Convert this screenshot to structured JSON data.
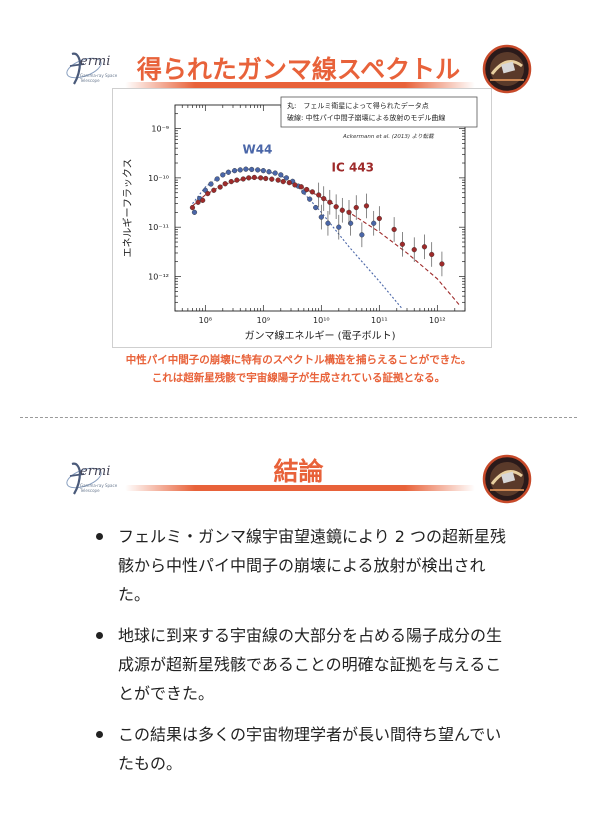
{
  "slide1": {
    "title": "得られたガンマ線スペクトル",
    "logo": {
      "word": "ermi",
      "sub": "Gamma-ray Space Telescope"
    },
    "legend": {
      "line1": "丸:　フェルミ衛星によって得られたデータ点",
      "line2": "破線: 中性パイ中間子崩壊による放射のモデル曲線"
    },
    "source_note": "Ackermann et al. (2013) より転載",
    "caption_line1": "中性パイ中間子の崩壊に特有のスペクトル構造を捕らえることができた。",
    "caption_line2": "これは超新星残骸で宇宙線陽子が生成されている証拠となる。"
  },
  "slide2": {
    "title": "結論",
    "logo": {
      "word": "ermi",
      "sub": "Gamma-ray Space Telescope"
    },
    "bullets": [
      "フェルミ・ガンマ線宇宙望遠鏡により 2 つの超新星残骸から中性パイ中間子の崩壊による放射が検出された。",
      "地球に到来する宇宙線の大部分を占める陽子成分の生成源が超新星残骸であることの明確な証拠を与えることができた。",
      "この結果は多くの宇宙物理学者が長い間待ち望んでいたもの。"
    ]
  },
  "colors": {
    "accent": "#e8623a",
    "w44": "#4a66a8",
    "ic443": "#9e2a2a"
  },
  "chart_data": {
    "type": "scatter",
    "xlabel": "ガンマ線エネルギー (電子ボルト)",
    "ylabel": "エネルギーフラックス",
    "xscale": "log",
    "yscale": "log",
    "xlim": [
      30000000.0,
      3000000000000.0
    ],
    "ylim": [
      2e-13,
      3e-09
    ],
    "x_ticks": [
      "10⁸",
      "10⁹",
      "10¹⁰",
      "10¹¹",
      "10¹²"
    ],
    "y_ticks": [
      "10⁻⁹",
      "10⁻¹⁰",
      "10⁻¹¹",
      "10⁻¹²"
    ],
    "series": [
      {
        "name": "W44",
        "points": [
          [
            65000000.0,
            2e-11
          ],
          [
            80000000.0,
            3.8e-11
          ],
          [
            100000000.0,
            5.6e-11
          ],
          [
            125000000.0,
            7.5e-11
          ],
          [
            160000000.0,
            9.5e-11
          ],
          [
            200000000.0,
            1.15e-10
          ],
          [
            250000000.0,
            1.3e-10
          ],
          [
            320000000.0,
            1.4e-10
          ],
          [
            400000000.0,
            1.45e-10
          ],
          [
            500000000.0,
            1.5e-10
          ],
          [
            630000000.0,
            1.48e-10
          ],
          [
            800000000.0,
            1.45e-10
          ],
          [
            1000000000.0,
            1.4e-10
          ],
          [
            1250000000.0,
            1.33e-10
          ],
          [
            1600000000.0,
            1.25e-10
          ],
          [
            2000000000.0,
            1.15e-10
          ],
          [
            2500000000.0,
            1e-10
          ],
          [
            3200000000.0,
            8.5e-11
          ],
          [
            4000000000.0,
            6.8e-11
          ],
          [
            5000000000.0,
            5.2e-11
          ],
          [
            6300000000.0,
            3.7e-11
          ],
          [
            8000000000.0,
            2.5e-11
          ],
          [
            10000000000.0,
            1.6e-11
          ],
          [
            13000000000.0,
            1.2e-11
          ],
          [
            20000000000.0,
            1e-11
          ],
          [
            32000000000.0,
            1.2e-11
          ],
          [
            50000000000.0,
            7e-12
          ],
          [
            80000000000.0,
            1.2e-11
          ]
        ]
      },
      {
        "name": "IC 443",
        "points": [
          [
            60000000.0,
            2.5e-11
          ],
          [
            75000000.0,
            3.2e-11
          ],
          [
            90000000.0,
            3.5e-11
          ],
          [
            110000000.0,
            4.8e-11
          ],
          [
            140000000.0,
            5.6e-11
          ],
          [
            180000000.0,
            6.5e-11
          ],
          [
            220000000.0,
            7.6e-11
          ],
          [
            280000000.0,
            8.4e-11
          ],
          [
            350000000.0,
            9e-11
          ],
          [
            450000000.0,
            9.5e-11
          ],
          [
            560000000.0,
            1e-10
          ],
          [
            700000000.0,
            1.02e-10
          ],
          [
            900000000.0,
            1e-10
          ],
          [
            1100000000.0,
            9.7e-11
          ],
          [
            1400000000.0,
            9.4e-11
          ],
          [
            1800000000.0,
            9e-11
          ],
          [
            2200000000.0,
            8.4e-11
          ],
          [
            2800000000.0,
            8e-11
          ],
          [
            3500000000.0,
            7.2e-11
          ],
          [
            4500000000.0,
            6.6e-11
          ],
          [
            5600000000.0,
            5.8e-11
          ],
          [
            7000000000.0,
            5.2e-11
          ],
          [
            9000000000.0,
            4.5e-11
          ],
          [
            11000000000.0,
            3.8e-11
          ],
          [
            14000000000.0,
            3.2e-11
          ],
          [
            18000000000.0,
            2.6e-11
          ],
          [
            23000000000.0,
            2.2e-11
          ],
          [
            30000000000.0,
            2e-11
          ],
          [
            40000000000.0,
            2.5e-11
          ],
          [
            60000000000.0,
            2.7e-11
          ],
          [
            100000000000.0,
            1.5e-11
          ],
          [
            180000000000.0,
            9e-12
          ],
          [
            250000000000.0,
            4.5e-12
          ],
          [
            400000000000.0,
            3.5e-12
          ],
          [
            600000000000.0,
            4e-12
          ],
          [
            800000000000.0,
            2.8e-12
          ],
          [
            1200000000000.0,
            1.8e-12
          ]
        ]
      }
    ],
    "models": [
      {
        "series": "W44",
        "points": [
          [
            60000000.0,
            3e-11
          ],
          [
            100000000.0,
            6.5e-11
          ],
          [
            200000000.0,
            1.2e-10
          ],
          [
            400000000.0,
            1.5e-10
          ],
          [
            700000000.0,
            1.5e-10
          ],
          [
            1000000000.0,
            1.42e-10
          ],
          [
            2000000000.0,
            1.12e-10
          ],
          [
            4000000000.0,
            6.5e-11
          ],
          [
            10000000000.0,
            2e-11
          ],
          [
            30000000000.0,
            4e-12
          ],
          [
            100000000000.0,
            8e-13
          ],
          [
            250000000000.0,
            2.2e-13
          ]
        ]
      },
      {
        "series": "IC 443",
        "points": [
          [
            60000000.0,
            2.7e-11
          ],
          [
            100000000.0,
            4.5e-11
          ],
          [
            200000000.0,
            7.2e-11
          ],
          [
            500000000.0,
            9.8e-11
          ],
          [
            1000000000.0,
            1e-10
          ],
          [
            2000000000.0,
            9e-11
          ],
          [
            5000000000.0,
            6.2e-11
          ],
          [
            10000000000.0,
            4e-11
          ],
          [
            30000000000.0,
            2e-11
          ],
          [
            100000000000.0,
            8e-12
          ],
          [
            300000000000.0,
            3e-12
          ],
          [
            1000000000000.0,
            9e-13
          ],
          [
            2500000000000.0,
            2.5e-13
          ]
        ]
      }
    ]
  }
}
